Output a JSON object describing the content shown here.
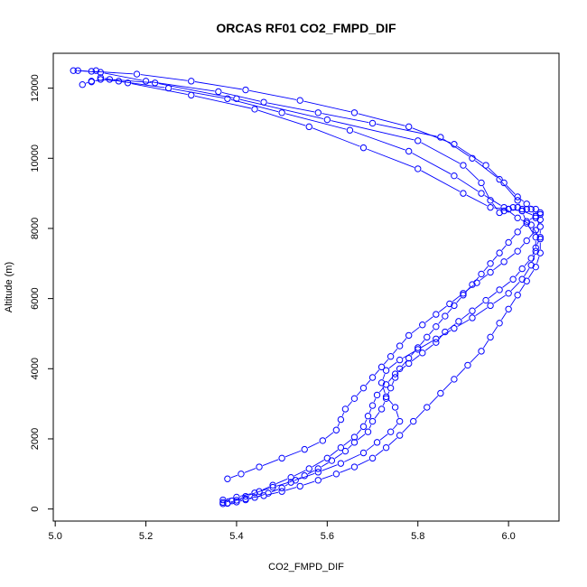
{
  "chart_data": {
    "type": "line",
    "title": "ORCAS RF01 CO2_FMPD_DIF",
    "xlabel": "CO2_FMPD_DIF",
    "ylabel": "Altitude (m)",
    "xlim": [
      5.0,
      6.1
    ],
    "ylim": [
      0,
      12800
    ],
    "xticks": [
      5.0,
      5.2,
      5.4,
      5.6,
      5.8,
      6.0
    ],
    "xtick_labels": [
      "5.0",
      "5.2",
      "5.4",
      "5.6",
      "5.8",
      "6.0"
    ],
    "yticks": [
      0,
      2000,
      4000,
      6000,
      8000,
      10000,
      12000
    ],
    "ytick_labels": [
      "0",
      "2000",
      "4000",
      "6000",
      "8000",
      "10000",
      "12000"
    ],
    "marker": "open-circle",
    "line_color": "#0000ff",
    "series": [
      {
        "x": [
          5.37,
          5.38,
          5.4,
          5.42,
          5.44,
          5.47,
          5.5,
          5.52,
          5.55,
          5.58,
          5.61,
          5.64,
          5.66,
          5.69,
          5.7,
          5.72,
          5.73,
          5.74,
          5.75,
          5.76,
          5.78,
          5.8,
          5.82,
          5.84,
          5.86,
          5.88,
          5.9,
          5.92,
          5.94,
          5.96,
          5.98,
          6.0,
          6.02,
          6.04,
          6.06,
          6.07,
          6.07,
          6.06,
          6.05,
          6.04,
          6.03,
          6.02,
          6.01,
          6.0,
          5.99,
          5.98,
          5.96,
          5.94,
          5.9,
          5.8,
          5.6,
          5.4,
          5.22,
          5.12,
          5.08,
          5.06
        ],
        "y": [
          150,
          160,
          200,
          260,
          330,
          450,
          600,
          760,
          950,
          1150,
          1380,
          1650,
          1900,
          2200,
          2500,
          2850,
          3150,
          3450,
          3750,
          4000,
          4300,
          4600,
          4900,
          5200,
          5500,
          5800,
          6100,
          6400,
          6700,
          7000,
          7300,
          7600,
          7900,
          8200,
          8350,
          8450,
          8400,
          8300,
          8550,
          8550,
          8550,
          8600,
          8600,
          8550,
          8500,
          8450,
          8800,
          9300,
          9800,
          10500,
          11100,
          11700,
          12150,
          12250,
          12200,
          12100
        ]
      },
      {
        "x": [
          5.37,
          5.39,
          5.42,
          5.46,
          5.5,
          5.54,
          5.58,
          5.62,
          5.66,
          5.7,
          5.73,
          5.76,
          5.79,
          5.82,
          5.85,
          5.88,
          5.91,
          5.94,
          5.96,
          5.98,
          6.0,
          6.02,
          6.04,
          6.06,
          6.07,
          6.07,
          6.05,
          6.02,
          5.99,
          5.94,
          5.88,
          5.78,
          5.65,
          5.5,
          5.38,
          5.25,
          5.14,
          5.1,
          5.08
        ],
        "y": [
          190,
          230,
          290,
          380,
          500,
          650,
          820,
          1000,
          1200,
          1450,
          1750,
          2100,
          2500,
          2900,
          3300,
          3700,
          4100,
          4500,
          4900,
          5300,
          5700,
          6100,
          6500,
          6900,
          7300,
          7700,
          8100,
          8300,
          8600,
          9000,
          9500,
          10200,
          10800,
          11300,
          11700,
          12000,
          12200,
          12250,
          12180
        ]
      },
      {
        "x": [
          5.37,
          5.4,
          5.44,
          5.48,
          5.53,
          5.58,
          5.63,
          5.68,
          5.71,
          5.74,
          5.76,
          5.75,
          5.73,
          5.72,
          5.73,
          5.76,
          5.8,
          5.84,
          5.88,
          5.92,
          5.96,
          6.0,
          6.03,
          6.05,
          6.06,
          6.06,
          6.04,
          6.03,
          6.02,
          5.98,
          5.92,
          5.85,
          5.7,
          5.58,
          5.46,
          5.36,
          5.2,
          5.1,
          5.05
        ],
        "y": [
          260,
          340,
          460,
          620,
          820,
          1050,
          1300,
          1600,
          1900,
          2200,
          2500,
          2900,
          3200,
          3600,
          3950,
          4250,
          4550,
          4850,
          5150,
          5450,
          5800,
          6150,
          6550,
          6950,
          7350,
          7750,
          8150,
          8500,
          8800,
          9400,
          10000,
          10600,
          11000,
          11300,
          11600,
          11900,
          12200,
          12450,
          12500
        ]
      },
      {
        "x": [
          5.38,
          5.41,
          5.45,
          5.5,
          5.55,
          5.59,
          5.62,
          5.63,
          5.64,
          5.66,
          5.68,
          5.7,
          5.72,
          5.74,
          5.76,
          5.78,
          5.81,
          5.84,
          5.87,
          5.9,
          5.93,
          5.96,
          5.99,
          6.02,
          6.04,
          6.06,
          6.07,
          6.06,
          6.04,
          6.02,
          5.99,
          5.95,
          5.88,
          5.78,
          5.66,
          5.54,
          5.42,
          5.3,
          5.18,
          5.08,
          5.04
        ],
        "y": [
          860,
          1000,
          1200,
          1450,
          1700,
          1950,
          2250,
          2550,
          2850,
          3150,
          3450,
          3750,
          4050,
          4350,
          4650,
          4950,
          5250,
          5550,
          5850,
          6150,
          6450,
          6750,
          7050,
          7350,
          7650,
          7950,
          8250,
          8550,
          8700,
          8900,
          9300,
          9800,
          10400,
          10900,
          11300,
          11650,
          11950,
          12200,
          12400,
          12480,
          12500
        ]
      },
      {
        "x": [
          5.38,
          5.4,
          5.42,
          5.45,
          5.48,
          5.52,
          5.56,
          5.6,
          5.63,
          5.66,
          5.68,
          5.69,
          5.7,
          5.71,
          5.73,
          5.75,
          5.78,
          5.81,
          5.84,
          5.86,
          5.89,
          5.92,
          5.95,
          5.98,
          6.01,
          6.03,
          6.05,
          6.06,
          6.07,
          6.07,
          6.06,
          6.03,
          6.0,
          5.96,
          5.9,
          5.8,
          5.68,
          5.56,
          5.44,
          5.3,
          5.16,
          5.1,
          5.09
        ],
        "y": [
          170,
          250,
          360,
          500,
          680,
          900,
          1150,
          1450,
          1750,
          2050,
          2350,
          2650,
          2950,
          3250,
          3550,
          3850,
          4150,
          4450,
          4750,
          5050,
          5350,
          5650,
          5950,
          6250,
          6550,
          6850,
          7150,
          7450,
          7750,
          8050,
          8350,
          8500,
          8550,
          8600,
          9000,
          9700,
          10300,
          10900,
          11400,
          11800,
          12150,
          12300,
          12500
        ]
      }
    ]
  }
}
